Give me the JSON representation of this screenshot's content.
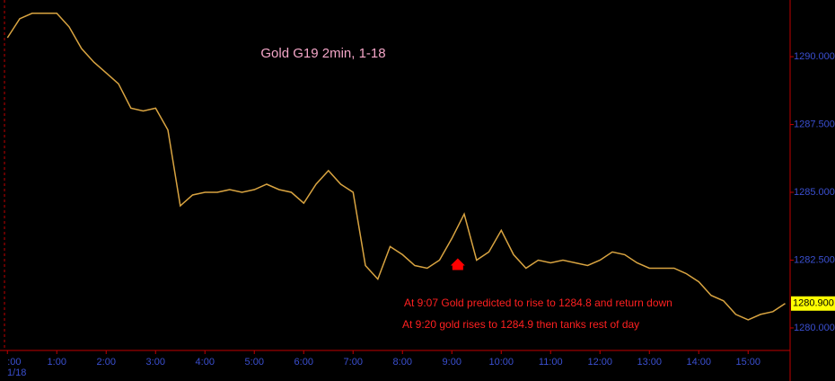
{
  "chart_data": {
    "type": "line",
    "title": "Gold G19 2min, 1-18",
    "date_label": "1/18",
    "annotations": [
      "At 9:07 Gold predicted to rise to 1284.8  and return down",
      "At 9:20 gold rises to 1284.9 then tanks rest of day"
    ],
    "x": [
      0,
      0.25,
      0.5,
      0.75,
      1,
      1.25,
      1.5,
      1.75,
      2,
      2.25,
      2.5,
      2.75,
      3,
      3.25,
      3.5,
      3.75,
      4,
      4.25,
      4.5,
      4.75,
      5,
      5.25,
      5.5,
      5.75,
      6,
      6.25,
      6.5,
      6.75,
      7,
      7.25,
      7.5,
      7.75,
      8,
      8.25,
      8.5,
      8.75,
      9,
      9.25,
      9.5,
      9.75,
      10,
      10.25,
      10.5,
      10.75,
      11,
      11.25,
      11.5,
      11.75,
      12,
      12.25,
      12.5,
      12.75,
      13,
      13.25,
      13.5,
      13.75,
      14,
      14.25,
      14.5,
      14.75,
      15,
      15.25,
      15.5,
      15.75
    ],
    "series": [
      {
        "color": "#d9a441",
        "values": [
          1290.7,
          1291.4,
          1291.6,
          1291.6,
          1291.6,
          1291.1,
          1290.3,
          1289.8,
          1289.4,
          1289.0,
          1288.1,
          1288.0,
          1288.1,
          1287.3,
          1284.5,
          1284.9,
          1285.0,
          1285.0,
          1285.1,
          1285.0,
          1285.1,
          1285.3,
          1285.1,
          1285.0,
          1284.6,
          1285.3,
          1285.8,
          1285.3,
          1285.0,
          1282.3,
          1281.8,
          1283.0,
          1282.7,
          1282.3,
          1282.2,
          1282.5,
          1283.3,
          1284.2,
          1282.5,
          1282.8,
          1283.6,
          1282.7,
          1282.2,
          1282.5,
          1282.4,
          1282.5,
          1282.4,
          1282.3,
          1282.5,
          1282.8,
          1282.7,
          1282.4,
          1282.2,
          1282.2,
          1282.2,
          1282.0,
          1281.7,
          1281.2,
          1281.0,
          1280.5,
          1280.3,
          1280.5,
          1280.6,
          1280.9
        ]
      }
    ],
    "marker": {
      "x": 9.12,
      "y": 1282.3,
      "color": "#ff0000"
    },
    "last_price": {
      "value": 1280.9,
      "label": "1280.900"
    },
    "xlim": [
      -0.15,
      15.85
    ],
    "xticks": [
      {
        "value": 0,
        "label": ":00"
      },
      {
        "value": 1,
        "label": "1:00"
      },
      {
        "value": 2,
        "label": "2:00"
      },
      {
        "value": 3,
        "label": "3:00"
      },
      {
        "value": 4,
        "label": "4:00"
      },
      {
        "value": 5,
        "label": "5:00"
      },
      {
        "value": 6,
        "label": "6:00"
      },
      {
        "value": 7,
        "label": "7:00"
      },
      {
        "value": 8,
        "label": "8:00"
      },
      {
        "value": 9,
        "label": "9:00"
      },
      {
        "value": 10,
        "label": "10:00"
      },
      {
        "value": 11,
        "label": "11:00"
      },
      {
        "value": 12,
        "label": "12:00"
      },
      {
        "value": 13,
        "label": "13:00"
      },
      {
        "value": 14,
        "label": "14:00"
      },
      {
        "value": 15,
        "label": "15:00"
      }
    ],
    "ylim": [
      1279.17,
      1292.09
    ],
    "yticks": [
      {
        "value": 1280,
        "label": "1280.000"
      },
      {
        "value": 1282.5,
        "label": "1282.500"
      },
      {
        "value": 1285,
        "label": "1285.000"
      },
      {
        "value": 1287.5,
        "label": "1287.500"
      },
      {
        "value": 1290,
        "label": "1290.000"
      }
    ]
  }
}
